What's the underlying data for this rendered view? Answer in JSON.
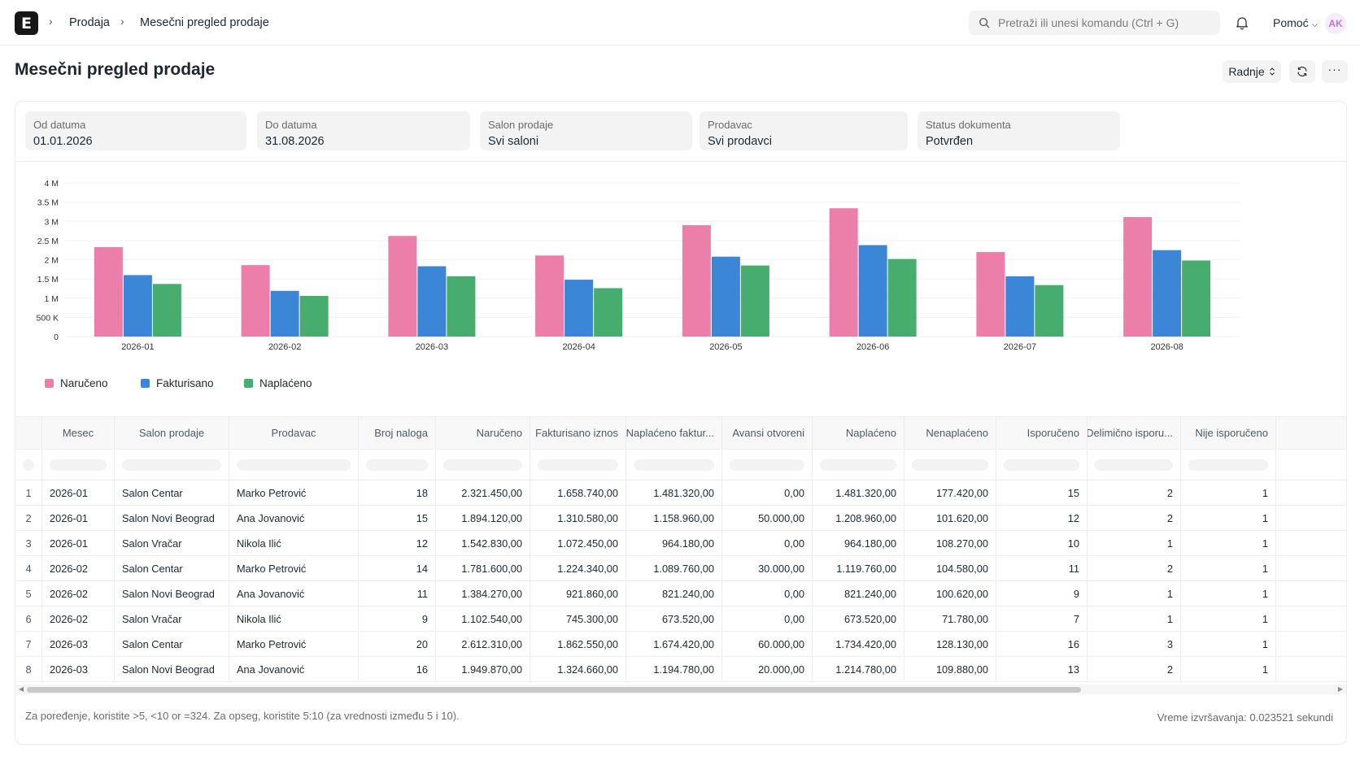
{
  "navbar": {
    "logo_letter": "E",
    "breadcrumbs": [
      "Prodaja",
      "Mesečni pregled prodaje"
    ],
    "search_placeholder": "Pretraži ili unesi komandu (Ctrl + G)",
    "help_label": "Pomoć",
    "avatar_initials": "AK"
  },
  "page": {
    "title": "Mesečni pregled prodaje",
    "actions_label": "Radnje"
  },
  "filters": [
    {
      "label": "Od datuma",
      "value": "01.01.2026"
    },
    {
      "label": "Do datuma",
      "value": "31.08.2026"
    },
    {
      "label": "Salon prodaje",
      "value": "Svi saloni"
    },
    {
      "label": "Prodavac",
      "value": "Svi prodavci"
    },
    {
      "label": "Status dokumenta",
      "value": "Potvrđen"
    }
  ],
  "chart_data": {
    "type": "bar",
    "categories": [
      "2026-01",
      "2026-02",
      "2026-03",
      "2026-04",
      "2026-05",
      "2026-06",
      "2026-07",
      "2026-08"
    ],
    "series": [
      {
        "name": "Naručeno",
        "color": "#ec7fa9",
        "values": [
          2330000,
          1860000,
          2620000,
          2110000,
          2900000,
          3340000,
          2200000,
          3110000
        ]
      },
      {
        "name": "Fakturisano",
        "color": "#3b86d6",
        "values": [
          1600000,
          1190000,
          1830000,
          1480000,
          2080000,
          2380000,
          1570000,
          2250000
        ]
      },
      {
        "name": "Naplaćeno",
        "color": "#47ad6f",
        "values": [
          1370000,
          1060000,
          1570000,
          1260000,
          1850000,
          2020000,
          1340000,
          1980000
        ]
      }
    ],
    "yticks": [
      "0",
      "500 K",
      "1 M",
      "1.5 M",
      "2 M",
      "2.5 M",
      "3 M",
      "3.5 M",
      "4 M"
    ],
    "ylim": [
      0,
      4000000
    ],
    "legend_position": "bottom-left",
    "grid": true
  },
  "table": {
    "columns": [
      "Mesec",
      "Salon prodaje",
      "Prodavac",
      "Broj naloga",
      "Naručeno",
      "Fakturisano iznos",
      "Naplaćeno faktur...",
      "Avansi otvoreni",
      "Naplaćeno",
      "Nenaplaćeno",
      "Isporučeno",
      "Delimično isporu...",
      "Nije isporučeno"
    ],
    "rows": [
      [
        "1",
        "2026-01",
        "Salon Centar",
        "Marko Petrović",
        "18",
        "2.321.450,00",
        "1.658.740,00",
        "1.481.320,00",
        "0,00",
        "1.481.320,00",
        "177.420,00",
        "15",
        "2",
        "1"
      ],
      [
        "2",
        "2026-01",
        "Salon Novi Beograd",
        "Ana Jovanović",
        "15",
        "1.894.120,00",
        "1.310.580,00",
        "1.158.960,00",
        "50.000,00",
        "1.208.960,00",
        "101.620,00",
        "12",
        "2",
        "1"
      ],
      [
        "3",
        "2026-01",
        "Salon Vračar",
        "Nikola Ilić",
        "12",
        "1.542.830,00",
        "1.072.450,00",
        "964.180,00",
        "0,00",
        "964.180,00",
        "108.270,00",
        "10",
        "1",
        "1"
      ],
      [
        "4",
        "2026-02",
        "Salon Centar",
        "Marko Petrović",
        "14",
        "1.781.600,00",
        "1.224.340,00",
        "1.089.760,00",
        "30.000,00",
        "1.119.760,00",
        "104.580,00",
        "11",
        "2",
        "1"
      ],
      [
        "5",
        "2026-02",
        "Salon Novi Beograd",
        "Ana Jovanović",
        "11",
        "1.384.270,00",
        "921.860,00",
        "821.240,00",
        "0,00",
        "821.240,00",
        "100.620,00",
        "9",
        "1",
        "1"
      ],
      [
        "6",
        "2026-02",
        "Salon Vračar",
        "Nikola Ilić",
        "9",
        "1.102.540,00",
        "745.300,00",
        "673.520,00",
        "0,00",
        "673.520,00",
        "71.780,00",
        "7",
        "1",
        "1"
      ],
      [
        "7",
        "2026-03",
        "Salon Centar",
        "Marko Petrović",
        "20",
        "2.612.310,00",
        "1.862.550,00",
        "1.674.420,00",
        "60.000,00",
        "1.734.420,00",
        "128.130,00",
        "16",
        "3",
        "1"
      ],
      [
        "8",
        "2026-03",
        "Salon Novi Beograd",
        "Ana Jovanović",
        "16",
        "1.949.870,00",
        "1.324.660,00",
        "1.194.780,00",
        "20.000,00",
        "1.214.780,00",
        "109.880,00",
        "13",
        "2",
        "1"
      ]
    ]
  },
  "footer": {
    "note": "Za poređenje, koristite >5, <10 or =324. Za opseg, koristite 5:10 (za vrednosti između 5 i 10).",
    "exec_time": "Vreme izvršavanja: 0.023521 sekundi"
  }
}
